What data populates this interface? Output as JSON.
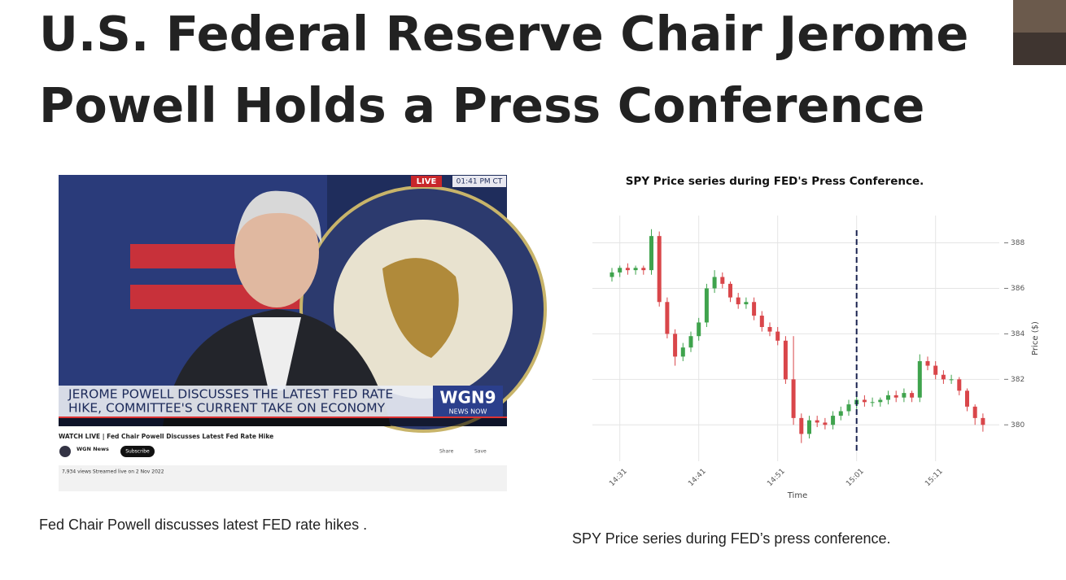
{
  "header": {
    "title_line1": "U.S. Federal Reserve Chair Jerome",
    "title_line2": "Powell Holds a Press Conference"
  },
  "video": {
    "live_badge": "LIVE",
    "time_badge": "01:41 PM CT",
    "banner_line1": "JEROME POWELL DISCUSSES THE LATEST FED RATE",
    "banner_line2": "HIKE, COMMITTEE'S CURRENT TAKE ON ECONOMY",
    "logo": "WGN9",
    "logo_sub": "NEWS NOW",
    "video_title": "WATCH LIVE | Fed Chair Powell Discusses Latest Fed Rate Hike",
    "channel": "WGN News",
    "subscribe": "Subscribe",
    "share": "Share",
    "save": "Save",
    "meta": "7,934 views  Streamed live on 2 Nov 2022",
    "caption": "Fed Chair Powell discusses latest FED rate hikes ."
  },
  "chart_data": {
    "type": "candlestick",
    "title": "SPY Price series during FED's Press Conference.",
    "x_label": "Time",
    "y_label": "Price ($)",
    "categories": [
      null,
      "14:31",
      null,
      null,
      null,
      null,
      null,
      null,
      null,
      null,
      null,
      "14:41",
      null,
      null,
      null,
      null,
      null,
      null,
      null,
      null,
      null,
      "14:51",
      null,
      null,
      null,
      null,
      null,
      null,
      null,
      null,
      null,
      "15:01",
      null,
      null,
      null,
      null,
      null,
      null,
      null,
      null,
      null,
      "15:11",
      null,
      null,
      null,
      null,
      null,
      null
    ],
    "open": [
      386.5,
      386.7,
      386.9,
      386.8,
      386.9,
      386.8,
      388.3,
      385.4,
      384.0,
      383.0,
      383.4,
      383.9,
      384.5,
      386.0,
      386.5,
      386.2,
      385.6,
      385.3,
      385.4,
      384.8,
      384.3,
      384.1,
      383.7,
      382.0,
      380.3,
      379.6,
      380.2,
      380.1,
      380.0,
      380.4,
      380.6,
      380.9,
      381.1,
      381.0,
      381.0,
      381.1,
      381.3,
      381.2,
      381.4,
      381.2,
      382.8,
      382.6,
      382.2,
      382.0,
      382.0,
      381.5,
      380.8,
      380.3
    ],
    "high": [
      386.9,
      387.0,
      387.1,
      387.0,
      387.0,
      388.6,
      388.5,
      385.6,
      384.2,
      383.6,
      384.1,
      384.7,
      386.2,
      386.8,
      386.7,
      386.3,
      385.8,
      385.6,
      385.6,
      385.0,
      384.5,
      384.3,
      383.9,
      383.9,
      380.5,
      380.4,
      380.4,
      380.3,
      380.6,
      380.8,
      381.1,
      381.3,
      381.3,
      381.2,
      381.2,
      381.5,
      381.5,
      381.6,
      381.5,
      383.1,
      383.0,
      382.8,
      382.4,
      382.2,
      382.1,
      381.6,
      380.9,
      380.5
    ],
    "low": [
      386.3,
      386.5,
      386.6,
      386.6,
      386.6,
      386.6,
      385.2,
      383.8,
      382.6,
      382.8,
      383.2,
      383.7,
      384.3,
      385.8,
      386.0,
      385.4,
      385.1,
      385.1,
      384.6,
      384.1,
      383.9,
      383.5,
      381.8,
      380.0,
      379.2,
      379.4,
      379.9,
      379.8,
      379.8,
      380.2,
      380.4,
      380.7,
      380.8,
      380.8,
      380.8,
      380.9,
      381.0,
      381.0,
      381.0,
      381.0,
      382.4,
      382.0,
      381.8,
      381.8,
      381.3,
      380.6,
      380.0,
      379.7
    ],
    "close": [
      386.7,
      386.9,
      386.8,
      386.9,
      386.8,
      388.3,
      385.4,
      384.0,
      383.0,
      383.4,
      383.9,
      384.5,
      386.0,
      386.5,
      386.2,
      385.6,
      385.3,
      385.4,
      384.8,
      384.3,
      384.1,
      383.7,
      382.0,
      380.3,
      379.6,
      380.2,
      380.1,
      380.0,
      380.4,
      380.6,
      380.9,
      381.1,
      381.0,
      381.0,
      381.1,
      381.3,
      381.2,
      381.4,
      381.2,
      382.8,
      382.6,
      382.2,
      382.0,
      382.0,
      381.5,
      380.8,
      380.3,
      380.0
    ],
    "up_color": "#3fa34d",
    "down_color": "#d9464a",
    "ylim": [
      378.4,
      389.2
    ],
    "yticks": [
      380,
      382,
      384,
      386,
      388
    ],
    "grid": true,
    "vline": "15:01"
  },
  "chart_caption": "SPY Price series during FED’s press conference."
}
